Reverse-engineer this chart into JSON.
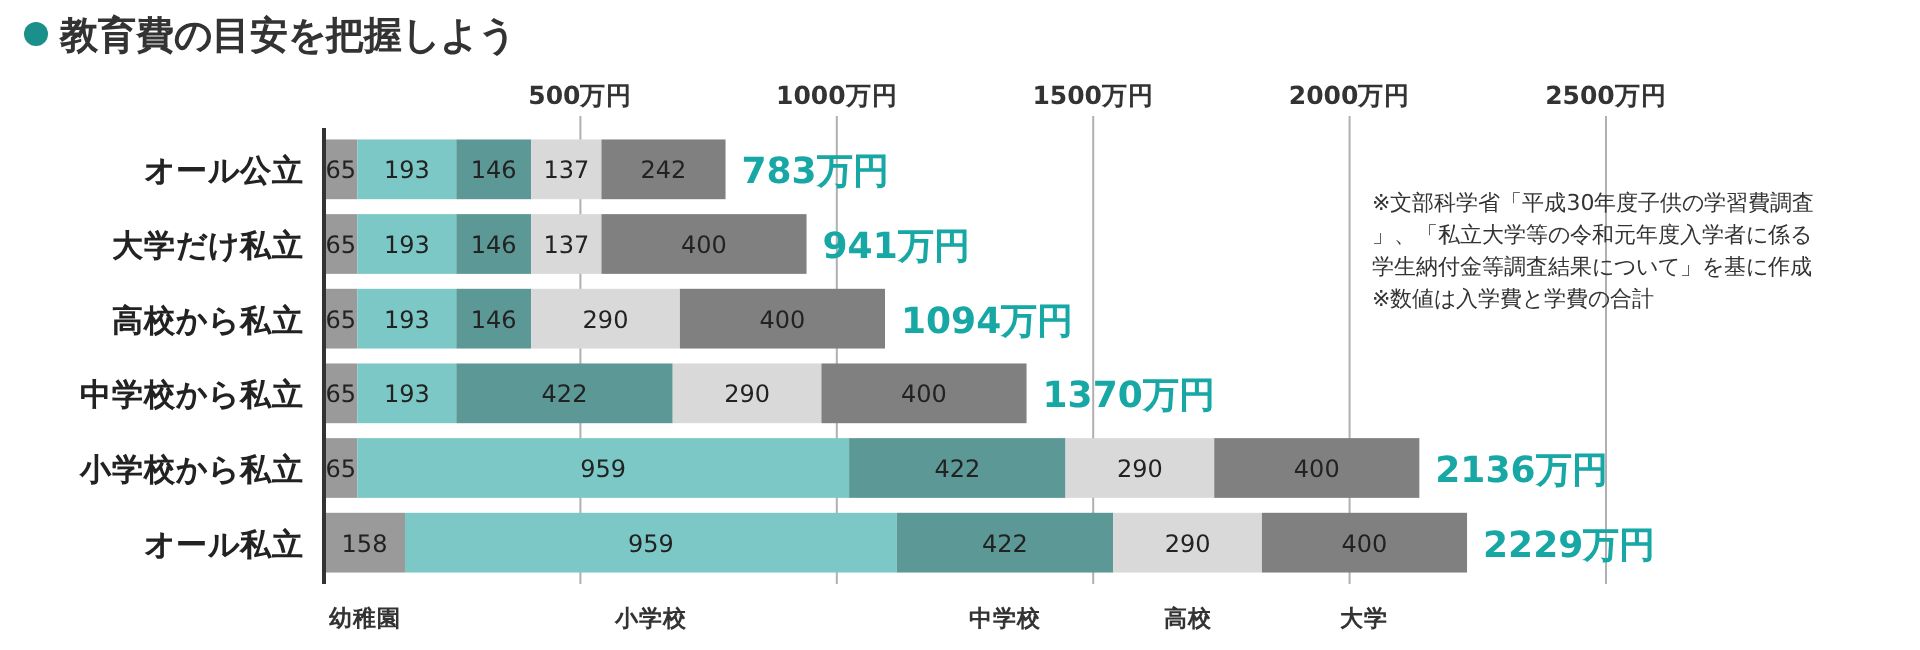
{
  "chart_data": {
    "type": "bar",
    "orientation": "horizontal",
    "stacked": true,
    "data_labels": true,
    "grid": "x",
    "legend": "bottom",
    "title": "教育費の目安を把握しよう",
    "categories": [
      "オール公立",
      "大学だけ私立",
      "高校から私立",
      "中学校から私立",
      "小学校から私立",
      "オール私立"
    ],
    "series": [
      {
        "name": "幼稚園",
        "color": "#9a9a9a",
        "values": [
          65,
          65,
          65,
          65,
          65,
          158
        ]
      },
      {
        "name": "小学校",
        "color": "#7cc8c6",
        "values": [
          193,
          193,
          193,
          193,
          959,
          959
        ]
      },
      {
        "name": "中学校",
        "color": "#5c9896",
        "values": [
          146,
          146,
          146,
          422,
          422,
          422
        ]
      },
      {
        "name": "高校",
        "color": "#d9d9d9",
        "values": [
          137,
          137,
          290,
          290,
          290,
          290
        ]
      },
      {
        "name": "大学",
        "color": "#808080",
        "values": [
          242,
          400,
          400,
          400,
          400,
          400
        ]
      }
    ],
    "totals": [
      "783万円",
      "941万円",
      "1094万円",
      "1370万円",
      "2136万円",
      "2229万円"
    ],
    "xlim": [
      0,
      2500
    ],
    "xticks": [
      {
        "value": 500,
        "label": "500万円"
      },
      {
        "value": 1000,
        "label": "1000万円"
      },
      {
        "value": 1500,
        "label": "1500万円"
      },
      {
        "value": 2000,
        "label": "2000万円"
      },
      {
        "value": 2500,
        "label": "2500万円"
      }
    ],
    "annotations": [
      "※文部科学省「平成30年度子供の学習費調査」、「私立大学等の令和元年度入学者に係る学生納付金等調査結果について」を基に作成",
      "※数値は入学費と学費の合計"
    ]
  }
}
